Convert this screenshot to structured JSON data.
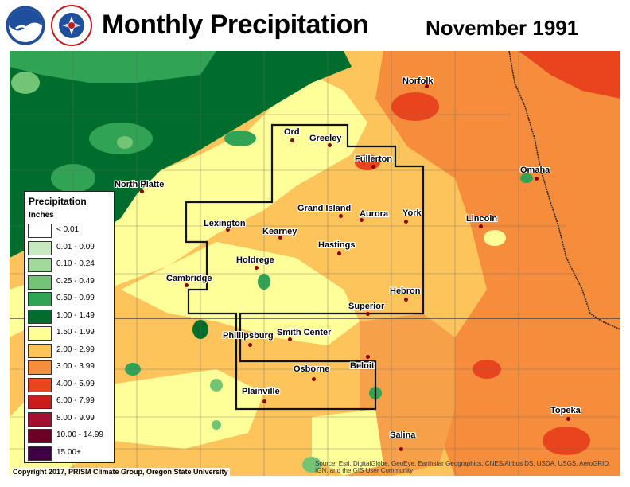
{
  "header": {
    "title": "Monthly Precipitation",
    "date": "November 1991",
    "logos": [
      "noaa-logo",
      "national-weather-service-logo"
    ],
    "nws_logo_text": "NATIONAL WEATHER SERVICE"
  },
  "legend": {
    "title": "Precipitation",
    "units": "Inches",
    "items": [
      {
        "label": "< 0.01",
        "color": "#ffffff"
      },
      {
        "label": "0.01 - 0.09",
        "color": "#c7e9c0"
      },
      {
        "label": "0.10 - 0.24",
        "color": "#a1d99b"
      },
      {
        "label": "0.25 - 0.49",
        "color": "#74c476"
      },
      {
        "label": "0.50 - 0.99",
        "color": "#31a354"
      },
      {
        "label": "1.00 - 1.49",
        "color": "#006d2c"
      },
      {
        "label": "1.50 - 1.99",
        "color": "#ffff99"
      },
      {
        "label": "2.00 - 2.99",
        "color": "#fdc45c"
      },
      {
        "label": "3.00 - 3.99",
        "color": "#f58d3c"
      },
      {
        "label": "4.00 - 5.99",
        "color": "#e8441e"
      },
      {
        "label": "6.00 - 7.99",
        "color": "#c81d1d"
      },
      {
        "label": "8.00 - 9.99",
        "color": "#a50f30"
      },
      {
        "label": "10.00 - 14.99",
        "color": "#6b0024"
      },
      {
        "label": "15.00+",
        "color": "#3f0045"
      }
    ]
  },
  "cities": [
    {
      "name": "Norfolk"
    },
    {
      "name": "Ord"
    },
    {
      "name": "Greeley"
    },
    {
      "name": "Fullerton"
    },
    {
      "name": "North Platte"
    },
    {
      "name": "Omaha"
    },
    {
      "name": "Grand Island"
    },
    {
      "name": "Aurora"
    },
    {
      "name": "York"
    },
    {
      "name": "Lincoln"
    },
    {
      "name": "Lexington"
    },
    {
      "name": "Kearney"
    },
    {
      "name": "Hastings"
    },
    {
      "name": "Holdrege"
    },
    {
      "name": "Cambridge"
    },
    {
      "name": "Hebron"
    },
    {
      "name": "Superior"
    },
    {
      "name": "Phillipsburg"
    },
    {
      "name": "Smith Center"
    },
    {
      "name": "Beloit"
    },
    {
      "name": "Osborne"
    },
    {
      "name": "Plainville"
    },
    {
      "name": "Topeka"
    },
    {
      "name": "Salina"
    }
  ],
  "footer": {
    "credit": "Copyright 2017, PRISM Climate Group, Oregon State University",
    "source": "Source: Esri, DigitalGlobe, GeoEye, Earthstar Geographics, CNES/Airbus DS, USDA, USGS, AeroGRID, IGN, and the GIS User Community"
  }
}
